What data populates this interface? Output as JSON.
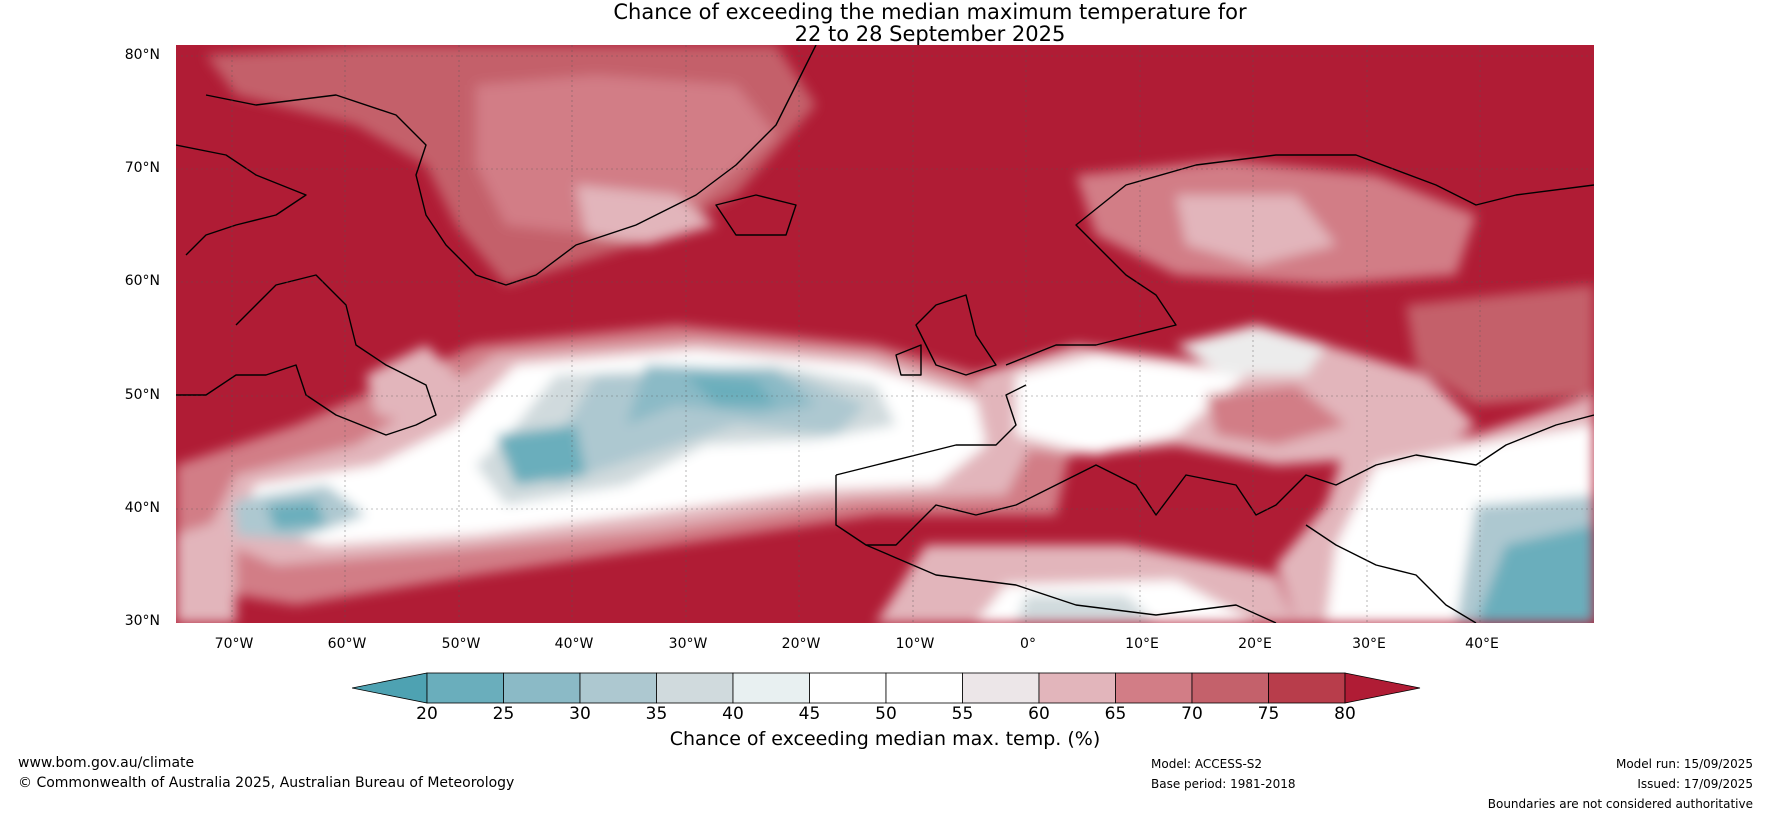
{
  "title_line1": "Chance of exceeding the median maximum temperature for",
  "title_line2": "22 to 28 September 2025",
  "lat_labels": [
    "80°N",
    "70°N",
    "60°N",
    "50°N",
    "40°N",
    "30°N"
  ],
  "lon_labels": [
    "70°W",
    "60°W",
    "50°W",
    "40°W",
    "30°W",
    "20°W",
    "10°W",
    "0°",
    "10°E",
    "20°E",
    "30°E",
    "40°E"
  ],
  "colorbar": {
    "ticks": [
      "20",
      "25",
      "30",
      "35",
      "40",
      "45",
      "50",
      "55",
      "60",
      "65",
      "70",
      "75",
      "80"
    ],
    "colors": [
      "#4ea2b2",
      "#6aaebc",
      "#8bbac6",
      "#adc8d0",
      "#d0dadd",
      "#e8f0f1",
      "#ffffff",
      "#ffffff",
      "#ece6e8",
      "#e2b5bb",
      "#d27d86",
      "#c4616b",
      "#b83d4b",
      "#b01c35"
    ],
    "label": "Chance of exceeding median max. temp. (%)"
  },
  "footer": {
    "website": "www.bom.gov.au/climate",
    "copyright": "© Commonwealth of Australia 2025, Australian Bureau of Meteorology",
    "model": "Model: ACCESS-S2",
    "base_period": "Base period: 1981-2018",
    "model_run": "Model run: 15/09/2025",
    "issued": "Issued: 17/09/2025",
    "disclaimer": "Boundaries are not considered authoritative"
  }
}
